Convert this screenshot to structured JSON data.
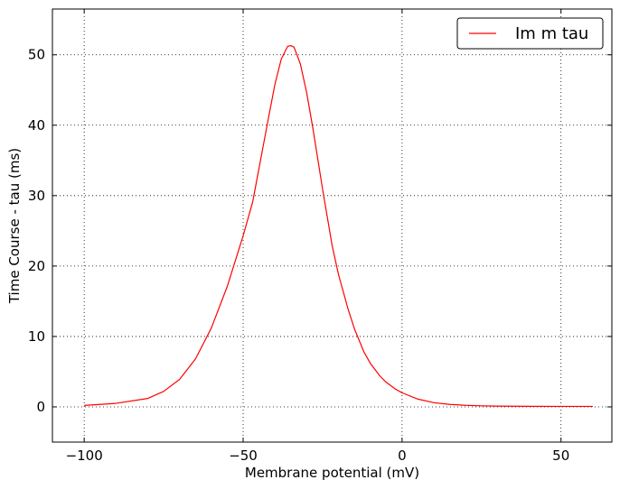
{
  "chart_data": {
    "type": "line",
    "title": "",
    "xlabel": "Membrane potential (mV)",
    "ylabel": "Time Course - tau (ms)",
    "xlim": [
      -110,
      66
    ],
    "ylim": [
      -5,
      56.5
    ],
    "xticks": [
      -100,
      -50,
      0,
      50
    ],
    "yticks": [
      0,
      10,
      20,
      30,
      40,
      50
    ],
    "xtick_labels": [
      "−100",
      "−50",
      "0",
      "50"
    ],
    "ytick_labels": [
      "0",
      "10",
      "20",
      "30",
      "40",
      "50"
    ],
    "grid": true,
    "legend": {
      "position": "top-right"
    },
    "series": [
      {
        "name": "Im m tau",
        "color": "#ff0000",
        "x": [
          -100,
          -90,
          -80,
          -75,
          -70,
          -65,
          -60,
          -55,
          -50,
          -47,
          -45,
          -42,
          -40,
          -38,
          -36,
          -35,
          -34,
          -32,
          -30,
          -28,
          -25,
          -22,
          -20,
          -17,
          -15,
          -12,
          -10,
          -7,
          -5,
          -2,
          0,
          5,
          10,
          15,
          20,
          25,
          30,
          40,
          50,
          60
        ],
        "y": [
          0.2,
          0.5,
          1.2,
          2.2,
          3.9,
          6.8,
          11.2,
          17.1,
          24.3,
          29.1,
          33.9,
          41.1,
          45.8,
          49.4,
          51.2,
          51.3,
          51.1,
          48.7,
          44.6,
          39.4,
          30.9,
          22.9,
          18.8,
          13.9,
          11.1,
          7.8,
          6.2,
          4.4,
          3.5,
          2.5,
          2.0,
          1.1,
          0.6,
          0.35,
          0.22,
          0.15,
          0.11,
          0.08,
          0.07,
          0.07
        ]
      }
    ]
  }
}
